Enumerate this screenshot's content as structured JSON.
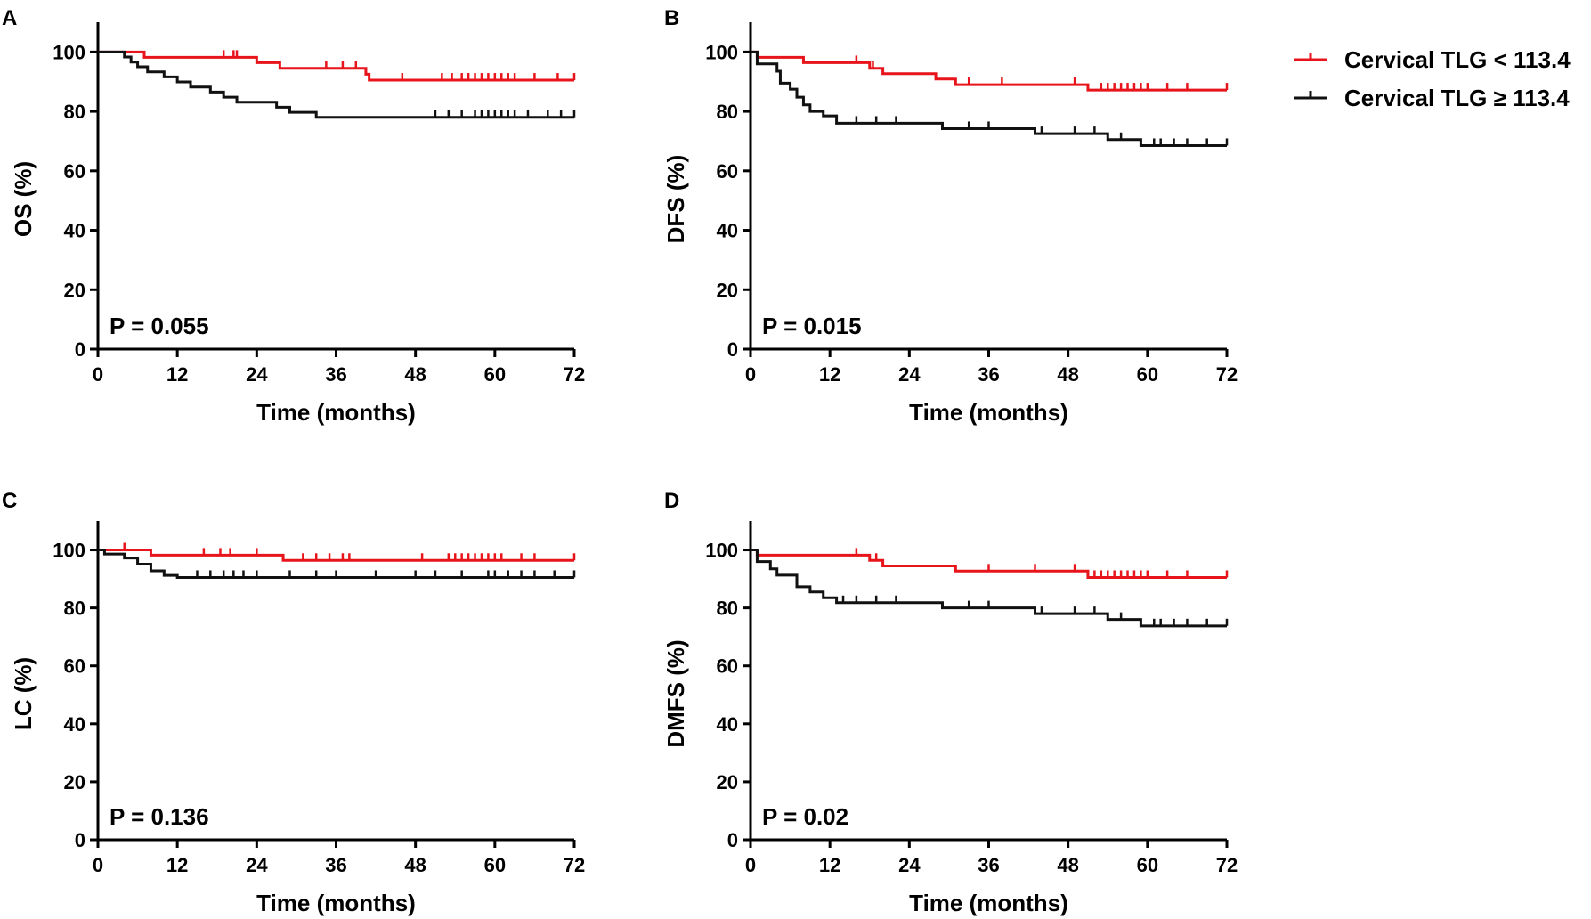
{
  "legend": {
    "entries": [
      {
        "label": "Cervical TLG < 113.4",
        "color": "#e8141b"
      },
      {
        "label": "Cervical TLG ≥ 113.4",
        "color": "#111111"
      }
    ]
  },
  "chart_data": [
    {
      "type": "line",
      "panel": "A",
      "title": "",
      "xlabel": "Time (months)",
      "ylabel": "OS (%)",
      "xlim": [
        0,
        72
      ],
      "ylim": [
        0,
        110
      ],
      "xticks": [
        "0",
        "12",
        "24",
        "36",
        "48",
        "60",
        "72"
      ],
      "yticks": [
        "0",
        "20",
        "40",
        "60",
        "80",
        "100"
      ],
      "grid": false,
      "annotation": "P = 0.055",
      "series": [
        {
          "name": "Cervical TLG < 113.4",
          "color": "#e8141b",
          "steps": [
            [
              0,
              100
            ],
            [
              7,
              98.2
            ],
            [
              24,
              96.4
            ],
            [
              27.5,
              94.5
            ],
            [
              40.5,
              92.5
            ],
            [
              41,
              90.5
            ],
            [
              72,
              90.5
            ]
          ],
          "censors": [
            19,
            20.5,
            21,
            34.5,
            37,
            39,
            46,
            52,
            53.5,
            55,
            56,
            57,
            58,
            59,
            60,
            61,
            62,
            63,
            66,
            69.5,
            72
          ]
        },
        {
          "name": "Cervical TLG ≥ 113.4",
          "color": "#111111",
          "steps": [
            [
              0,
              100
            ],
            [
              4,
              98.3
            ],
            [
              5,
              96.6
            ],
            [
              6,
              95
            ],
            [
              7.5,
              93.3
            ],
            [
              10,
              91.6
            ],
            [
              12,
              89.9
            ],
            [
              14,
              88.2
            ],
            [
              17,
              86.5
            ],
            [
              19,
              84.8
            ],
            [
              21,
              83.1
            ],
            [
              27,
              81.4
            ],
            [
              29,
              79.7
            ],
            [
              33,
              78
            ],
            [
              72,
              78
            ]
          ],
          "censors": [
            51,
            53,
            55,
            57,
            58,
            59,
            60,
            61,
            62,
            63,
            65,
            68,
            70,
            72
          ]
        }
      ]
    },
    {
      "type": "line",
      "panel": "B",
      "title": "",
      "xlabel": "Time (months)",
      "ylabel": "DFS (%)",
      "xlim": [
        0,
        72
      ],
      "ylim": [
        0,
        110
      ],
      "xticks": [
        "0",
        "12",
        "24",
        "36",
        "48",
        "60",
        "72"
      ],
      "yticks": [
        "0",
        "20",
        "40",
        "60",
        "80",
        "100"
      ],
      "grid": false,
      "annotation": "P = 0.015",
      "series": [
        {
          "name": "Cervical TLG < 113.4",
          "color": "#e8141b",
          "steps": [
            [
              0,
              100
            ],
            [
              1,
              98.2
            ],
            [
              8,
              96.4
            ],
            [
              18,
              94.5
            ],
            [
              20,
              92.7
            ],
            [
              28,
              90.9
            ],
            [
              31,
              89
            ],
            [
              51,
              87.2
            ],
            [
              72,
              87.2
            ]
          ],
          "censors": [
            16,
            18.5,
            33,
            38,
            49,
            53,
            54,
            55,
            56,
            57,
            58,
            59,
            60,
            63,
            66,
            72
          ]
        },
        {
          "name": "Cervical TLG ≥ 113.4",
          "color": "#111111",
          "steps": [
            [
              0,
              100
            ],
            [
              1,
              96
            ],
            [
              4,
              93.5
            ],
            [
              4.5,
              89.5
            ],
            [
              6,
              87.5
            ],
            [
              7,
              84.8
            ],
            [
              8,
              82.2
            ],
            [
              9,
              80
            ],
            [
              11,
              78.5
            ],
            [
              13,
              76
            ],
            [
              29,
              74.2
            ],
            [
              43,
              72.5
            ],
            [
              54,
              70.5
            ],
            [
              59,
              68.5
            ],
            [
              72,
              68.5
            ]
          ],
          "censors": [
            16,
            19,
            22,
            33,
            36,
            44,
            49,
            52,
            56,
            61,
            62,
            64,
            66,
            69,
            72
          ]
        }
      ]
    },
    {
      "type": "line",
      "panel": "C",
      "title": "",
      "xlabel": "Time (months)",
      "ylabel": "LC (%)",
      "xlim": [
        0,
        72
      ],
      "ylim": [
        0,
        110
      ],
      "xticks": [
        "0",
        "12",
        "24",
        "36",
        "48",
        "60",
        "72"
      ],
      "yticks": [
        "0",
        "20",
        "40",
        "60",
        "80",
        "100"
      ],
      "grid": false,
      "annotation": "P = 0.136",
      "series": [
        {
          "name": "Cervical TLG < 113.4",
          "color": "#e8141b",
          "steps": [
            [
              0,
              100
            ],
            [
              8,
              98.2
            ],
            [
              28,
              96.4
            ],
            [
              72,
              96.4
            ]
          ],
          "censors": [
            4,
            16,
            18.5,
            20,
            24,
            31,
            33,
            35,
            37,
            38,
            49,
            53,
            54,
            55,
            56,
            57,
            58,
            59,
            60,
            61,
            64,
            66,
            72
          ]
        },
        {
          "name": "Cervical TLG ≥ 113.4",
          "color": "#111111",
          "steps": [
            [
              0,
              100
            ],
            [
              1,
              98.6
            ],
            [
              4,
              97.2
            ],
            [
              6,
              95.1
            ],
            [
              8,
              92.8
            ],
            [
              10,
              91.2
            ],
            [
              12,
              90.5
            ],
            [
              72,
              90.5
            ]
          ],
          "censors": [
            15,
            17,
            19,
            20.5,
            22,
            24,
            29,
            33,
            36,
            42,
            48,
            51,
            55,
            59,
            60,
            62,
            64,
            66,
            69,
            72
          ]
        }
      ]
    },
    {
      "type": "line",
      "panel": "D",
      "title": "",
      "xlabel": "Time (months)",
      "ylabel": "DMFS (%)",
      "xlim": [
        0,
        72
      ],
      "ylim": [
        0,
        110
      ],
      "xticks": [
        "0",
        "12",
        "24",
        "36",
        "48",
        "60",
        "72"
      ],
      "yticks": [
        "0",
        "20",
        "40",
        "60",
        "80",
        "100"
      ],
      "grid": false,
      "annotation": "P = 0.02",
      "series": [
        {
          "name": "Cervical TLG < 113.4",
          "color": "#e8141b",
          "steps": [
            [
              0,
              100
            ],
            [
              1,
              98.2
            ],
            [
              18,
              96.4
            ],
            [
              20,
              94.5
            ],
            [
              31,
              92.7
            ],
            [
              51,
              90.5
            ],
            [
              72,
              90.5
            ]
          ],
          "censors": [
            16,
            19,
            36,
            43,
            49,
            52,
            53,
            54,
            55,
            56,
            57,
            58,
            59,
            60,
            63,
            66,
            72
          ]
        },
        {
          "name": "Cervical TLG ≥ 113.4",
          "color": "#111111",
          "steps": [
            [
              0,
              100
            ],
            [
              1,
              96
            ],
            [
              3,
              93.5
            ],
            [
              4,
              91.3
            ],
            [
              7,
              87.3
            ],
            [
              9,
              85.5
            ],
            [
              11,
              83.5
            ],
            [
              13,
              81.8
            ],
            [
              29,
              80
            ],
            [
              43,
              78
            ],
            [
              54,
              76
            ],
            [
              59,
              73.8
            ],
            [
              72,
              73.8
            ]
          ],
          "censors": [
            14,
            16,
            19,
            22,
            33,
            36,
            44,
            49,
            52,
            56,
            61,
            62,
            64,
            66,
            69,
            72
          ]
        }
      ]
    }
  ]
}
